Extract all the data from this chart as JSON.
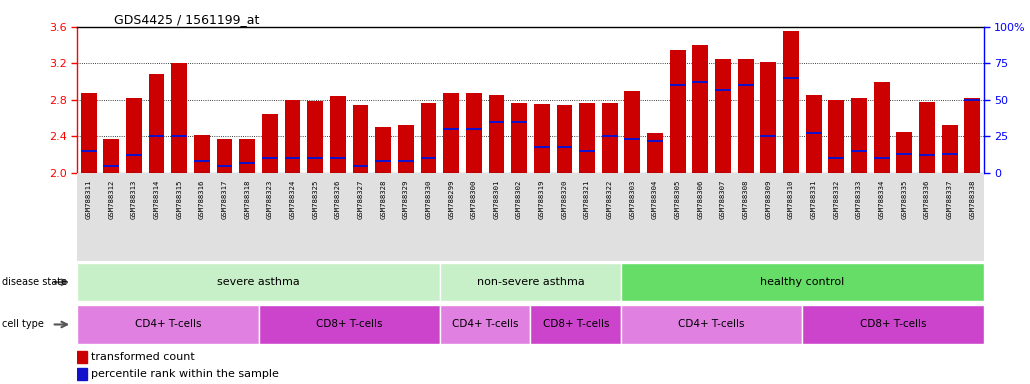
{
  "title": "GDS4425 / 1561199_at",
  "samples": [
    "GSM788311",
    "GSM788312",
    "GSM788313",
    "GSM788314",
    "GSM788315",
    "GSM788316",
    "GSM788317",
    "GSM788318",
    "GSM788323",
    "GSM788324",
    "GSM788325",
    "GSM788326",
    "GSM788327",
    "GSM788328",
    "GSM788329",
    "GSM788330",
    "GSM788299",
    "GSM788300",
    "GSM788301",
    "GSM788302",
    "GSM788319",
    "GSM788320",
    "GSM788321",
    "GSM788322",
    "GSM788303",
    "GSM788304",
    "GSM788305",
    "GSM788306",
    "GSM788307",
    "GSM788308",
    "GSM788309",
    "GSM788310",
    "GSM788331",
    "GSM788332",
    "GSM788333",
    "GSM788334",
    "GSM788335",
    "GSM788336",
    "GSM788337",
    "GSM788338"
  ],
  "transformed_count": [
    2.88,
    2.37,
    2.82,
    3.08,
    3.2,
    2.41,
    2.37,
    2.37,
    2.65,
    2.8,
    2.79,
    2.84,
    2.74,
    2.5,
    2.52,
    2.77,
    2.88,
    2.87,
    2.85,
    2.77,
    2.75,
    2.74,
    2.76,
    2.77,
    2.9,
    2.44,
    3.35,
    3.4,
    3.25,
    3.25,
    3.22,
    3.55,
    2.85,
    2.8,
    2.82,
    3.0,
    2.45,
    2.78,
    2.52,
    2.82
  ],
  "percentile_rank": [
    15,
    5,
    12,
    25,
    25,
    8,
    5,
    7,
    10,
    10,
    10,
    10,
    5,
    8,
    8,
    10,
    30,
    30,
    35,
    35,
    18,
    18,
    15,
    25,
    23,
    22,
    60,
    62,
    57,
    60,
    25,
    65,
    27,
    10,
    15,
    10,
    13,
    12,
    13,
    50
  ],
  "y_min": 2.0,
  "y_max": 3.6,
  "y_ticks": [
    2.0,
    2.4,
    2.8,
    3.2,
    3.6
  ],
  "y2_ticks": [
    0,
    25,
    50,
    75,
    100
  ],
  "bar_color": "#cc0000",
  "blue_color": "#1111cc",
  "disease_groups": [
    {
      "label": "severe asthma",
      "start": 0,
      "end": 15,
      "color": "#c8f0c8"
    },
    {
      "label": "non-severe asthma",
      "start": 16,
      "end": 23,
      "color": "#c8f0c8"
    },
    {
      "label": "healthy control",
      "start": 24,
      "end": 39,
      "color": "#66dd66"
    }
  ],
  "cell_groups": [
    {
      "label": "CD4+ T-cells",
      "start": 0,
      "end": 7,
      "color": "#e080e0"
    },
    {
      "label": "CD8+ T-cells",
      "start": 8,
      "end": 15,
      "color": "#cc44cc"
    },
    {
      "label": "CD4+ T-cells",
      "start": 16,
      "end": 19,
      "color": "#e080e0"
    },
    {
      "label": "CD8+ T-cells",
      "start": 20,
      "end": 23,
      "color": "#cc44cc"
    },
    {
      "label": "CD4+ T-cells",
      "start": 24,
      "end": 31,
      "color": "#e080e0"
    },
    {
      "label": "CD8+ T-cells",
      "start": 32,
      "end": 39,
      "color": "#cc44cc"
    }
  ],
  "legend_items": [
    {
      "label": "transformed count",
      "color": "#cc0000"
    },
    {
      "label": "percentile rank within the sample",
      "color": "#1111cc"
    }
  ]
}
